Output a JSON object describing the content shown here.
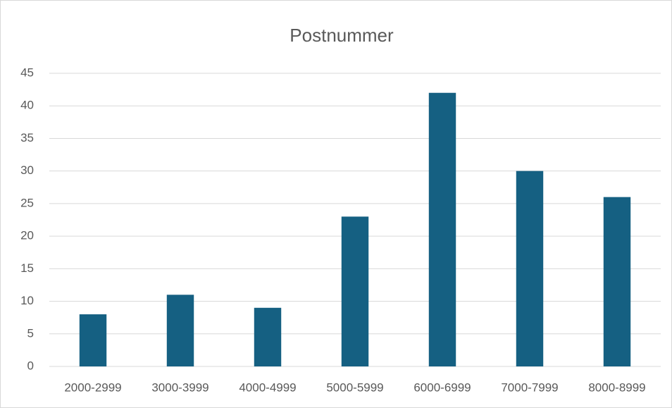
{
  "chart_data": {
    "type": "bar",
    "title": "Postnummer",
    "categories": [
      "2000-2999",
      "3000-3999",
      "4000-4999",
      "5000-5999",
      "6000-6999",
      "7000-7999",
      "8000-8999"
    ],
    "values": [
      8,
      11,
      9,
      23,
      42,
      30,
      26
    ],
    "color": "#156082",
    "ylim": [
      0,
      45
    ],
    "yticks": [
      0,
      5,
      10,
      15,
      20,
      25,
      30,
      35,
      40,
      45
    ],
    "grid": true
  }
}
